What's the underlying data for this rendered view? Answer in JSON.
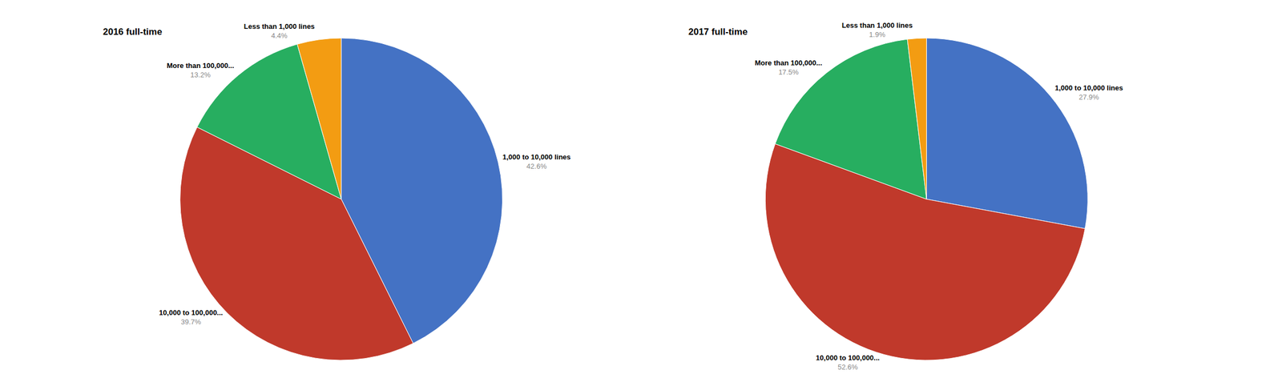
{
  "chart_data": [
    {
      "type": "pie",
      "title": "2016 full-time",
      "categories": [
        "1,000 to 10,000 lines",
        "10,000 to 100,000...",
        "More than 100,000...",
        "Less than 1,000 lines"
      ],
      "values": [
        42.6,
        39.7,
        13.2,
        4.4
      ],
      "value_labels": [
        "42.6%",
        "39.7%",
        "13.2%",
        "4.4%"
      ],
      "colors": [
        "#4472c4",
        "#c0392b",
        "#27ae60",
        "#f39c12"
      ],
      "data_labels": true
    },
    {
      "type": "pie",
      "title": "2017 full-time",
      "categories": [
        "1,000 to 10,000 lines",
        "10,000 to 100,000...",
        "More than 100,000...",
        "Less than 1,000 lines"
      ],
      "values": [
        27.9,
        52.6,
        17.5,
        1.9
      ],
      "value_labels": [
        "27.9%",
        "52.6%",
        "17.5%",
        "1.9%"
      ],
      "colors": [
        "#4472c4",
        "#c0392b",
        "#27ae60",
        "#f39c12"
      ],
      "data_labels": true
    }
  ]
}
